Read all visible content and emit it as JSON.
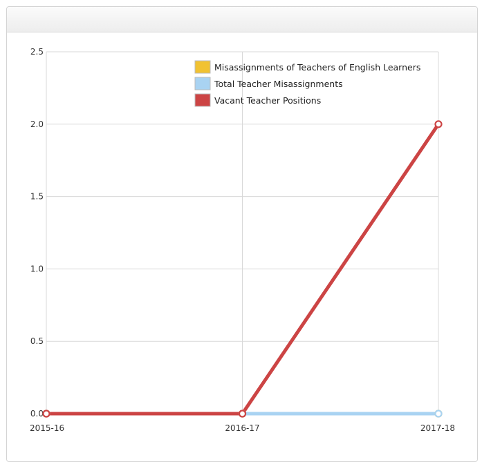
{
  "chart_data": {
    "type": "line",
    "categories": [
      "2015-16",
      "2016-17",
      "2017-18"
    ],
    "series": [
      {
        "name": "Misassignments of Teachers of English Learners",
        "color": "#f1c232",
        "values": [
          0,
          0,
          0
        ]
      },
      {
        "name": "Total Teacher Misassignments",
        "color": "#a9d3f2",
        "values": [
          0,
          0,
          0
        ]
      },
      {
        "name": "Vacant Teacher Positions",
        "color": "#cc4444",
        "values": [
          0,
          0,
          2
        ]
      }
    ],
    "ylim": [
      0,
      2.5
    ],
    "yticks": [
      "0.0",
      "0.5",
      "1.0",
      "1.5",
      "2.0",
      "2.5"
    ],
    "grid": true,
    "legend_position": "top-right"
  }
}
